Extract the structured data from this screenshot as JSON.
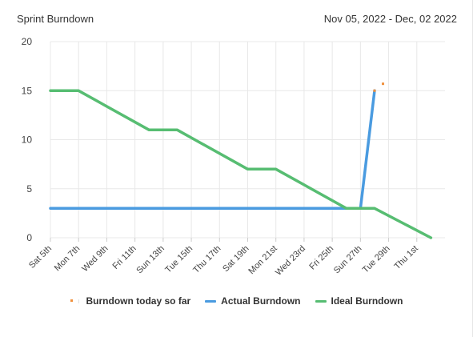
{
  "header": {
    "title": "Sprint Burndown",
    "date_range": "Nov 05, 2022 - Dec, 02 2022"
  },
  "colors": {
    "actual": "#4a9be0",
    "ideal": "#57bd72",
    "today": "#f0903c",
    "grid": "#e8e8e8",
    "axis_text": "#444444"
  },
  "chart_data": {
    "type": "line",
    "ylim": [
      0,
      20
    ],
    "yticks": [
      0,
      5,
      10,
      15,
      20
    ],
    "x_start": "2022-11-05",
    "x_end": "2022-12-03",
    "xticks": [
      {
        "date": "2022-11-05",
        "label": "Sat 5th"
      },
      {
        "date": "2022-11-07",
        "label": "Mon 7th"
      },
      {
        "date": "2022-11-09",
        "label": "Wed 9th"
      },
      {
        "date": "2022-11-11",
        "label": "Fri 11th"
      },
      {
        "date": "2022-11-13",
        "label": "Sun 13th"
      },
      {
        "date": "2022-11-15",
        "label": "Tue 15th"
      },
      {
        "date": "2022-11-17",
        "label": "Thu 17th"
      },
      {
        "date": "2022-11-19",
        "label": "Sat 19th"
      },
      {
        "date": "2022-11-21",
        "label": "Mon 21st"
      },
      {
        "date": "2022-11-23",
        "label": "Wed 23rd"
      },
      {
        "date": "2022-11-25",
        "label": "Fri 25th"
      },
      {
        "date": "2022-11-27",
        "label": "Sun 27th"
      },
      {
        "date": "2022-11-29",
        "label": "Tue 29th"
      },
      {
        "date": "2022-12-01",
        "label": "Thu 1st"
      }
    ],
    "series": [
      {
        "name": "Actual Burndown",
        "color_key": "actual",
        "kind": "line",
        "points": [
          {
            "x": "2022-11-05",
            "y": 3
          },
          {
            "x": "2022-11-27",
            "y": 3
          },
          {
            "x": "2022-11-28",
            "y": 15
          }
        ]
      },
      {
        "name": "Ideal Burndown",
        "color_key": "ideal",
        "kind": "line",
        "points": [
          {
            "x": "2022-11-05",
            "y": 15
          },
          {
            "x": "2022-11-07",
            "y": 15
          },
          {
            "x": "2022-11-12",
            "y": 11
          },
          {
            "x": "2022-11-14",
            "y": 11
          },
          {
            "x": "2022-11-19",
            "y": 7
          },
          {
            "x": "2022-11-21",
            "y": 7
          },
          {
            "x": "2022-11-26",
            "y": 3
          },
          {
            "x": "2022-11-28",
            "y": 3
          },
          {
            "x": "2022-12-02",
            "y": 0
          }
        ]
      },
      {
        "name": "Burndown today so far",
        "color_key": "today",
        "kind": "points",
        "points": [
          {
            "x": "2022-11-28",
            "y": 15
          },
          {
            "x": "2022-11-28.6",
            "y": 15.7
          }
        ]
      }
    ],
    "legend": [
      {
        "label": "Burndown today so far",
        "color_key": "today",
        "style": "dot"
      },
      {
        "label": "Actual Burndown",
        "color_key": "actual",
        "style": "line"
      },
      {
        "label": "Ideal Burndown",
        "color_key": "ideal",
        "style": "line"
      }
    ],
    "legend_position": "bottom-center",
    "grid": true
  }
}
